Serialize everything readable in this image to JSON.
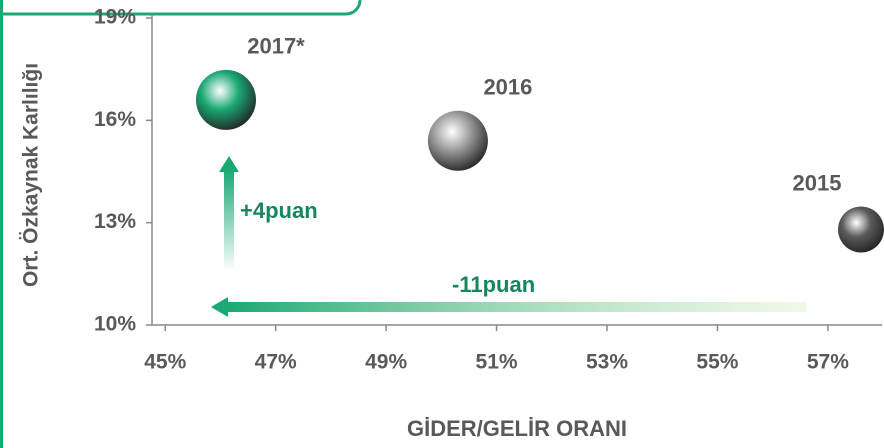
{
  "chart_data": {
    "type": "scatter",
    "ylabel": "Ort. Özkaynak Karlılığı",
    "xlabel": "GİDER/GELİR ORANI",
    "series": [
      {
        "name": "2017*",
        "color": "#1aa873",
        "x": [
          46.1
        ],
        "values": [
          16.6
        ]
      },
      {
        "name": "2016",
        "color": "#9a9a9a",
        "x": [
          50.3
        ],
        "values": [
          15.4
        ]
      },
      {
        "name": "2015",
        "color": "#5a5a5a",
        "x": [
          57.6
        ],
        "values": [
          12.8
        ]
      }
    ],
    "annotations": [
      "+4puan",
      "-11puan"
    ],
    "xlim": [
      44.76,
      57.98
    ],
    "xticks": [
      {
        "value": 45,
        "label": "45%"
      },
      {
        "value": 47,
        "label": "47%"
      },
      {
        "value": 49,
        "label": "49%"
      },
      {
        "value": 51,
        "label": "51%"
      },
      {
        "value": 53,
        "label": "53%"
      },
      {
        "value": 55,
        "label": "55%"
      },
      {
        "value": 57,
        "label": "57%"
      }
    ],
    "ylim": [
      10,
      19
    ],
    "yticks": [
      {
        "value": 10,
        "label": "10%"
      },
      {
        "value": 13,
        "label": "13%"
      },
      {
        "value": 16,
        "label": "16%"
      },
      {
        "value": 19,
        "label": "19%"
      }
    ]
  }
}
